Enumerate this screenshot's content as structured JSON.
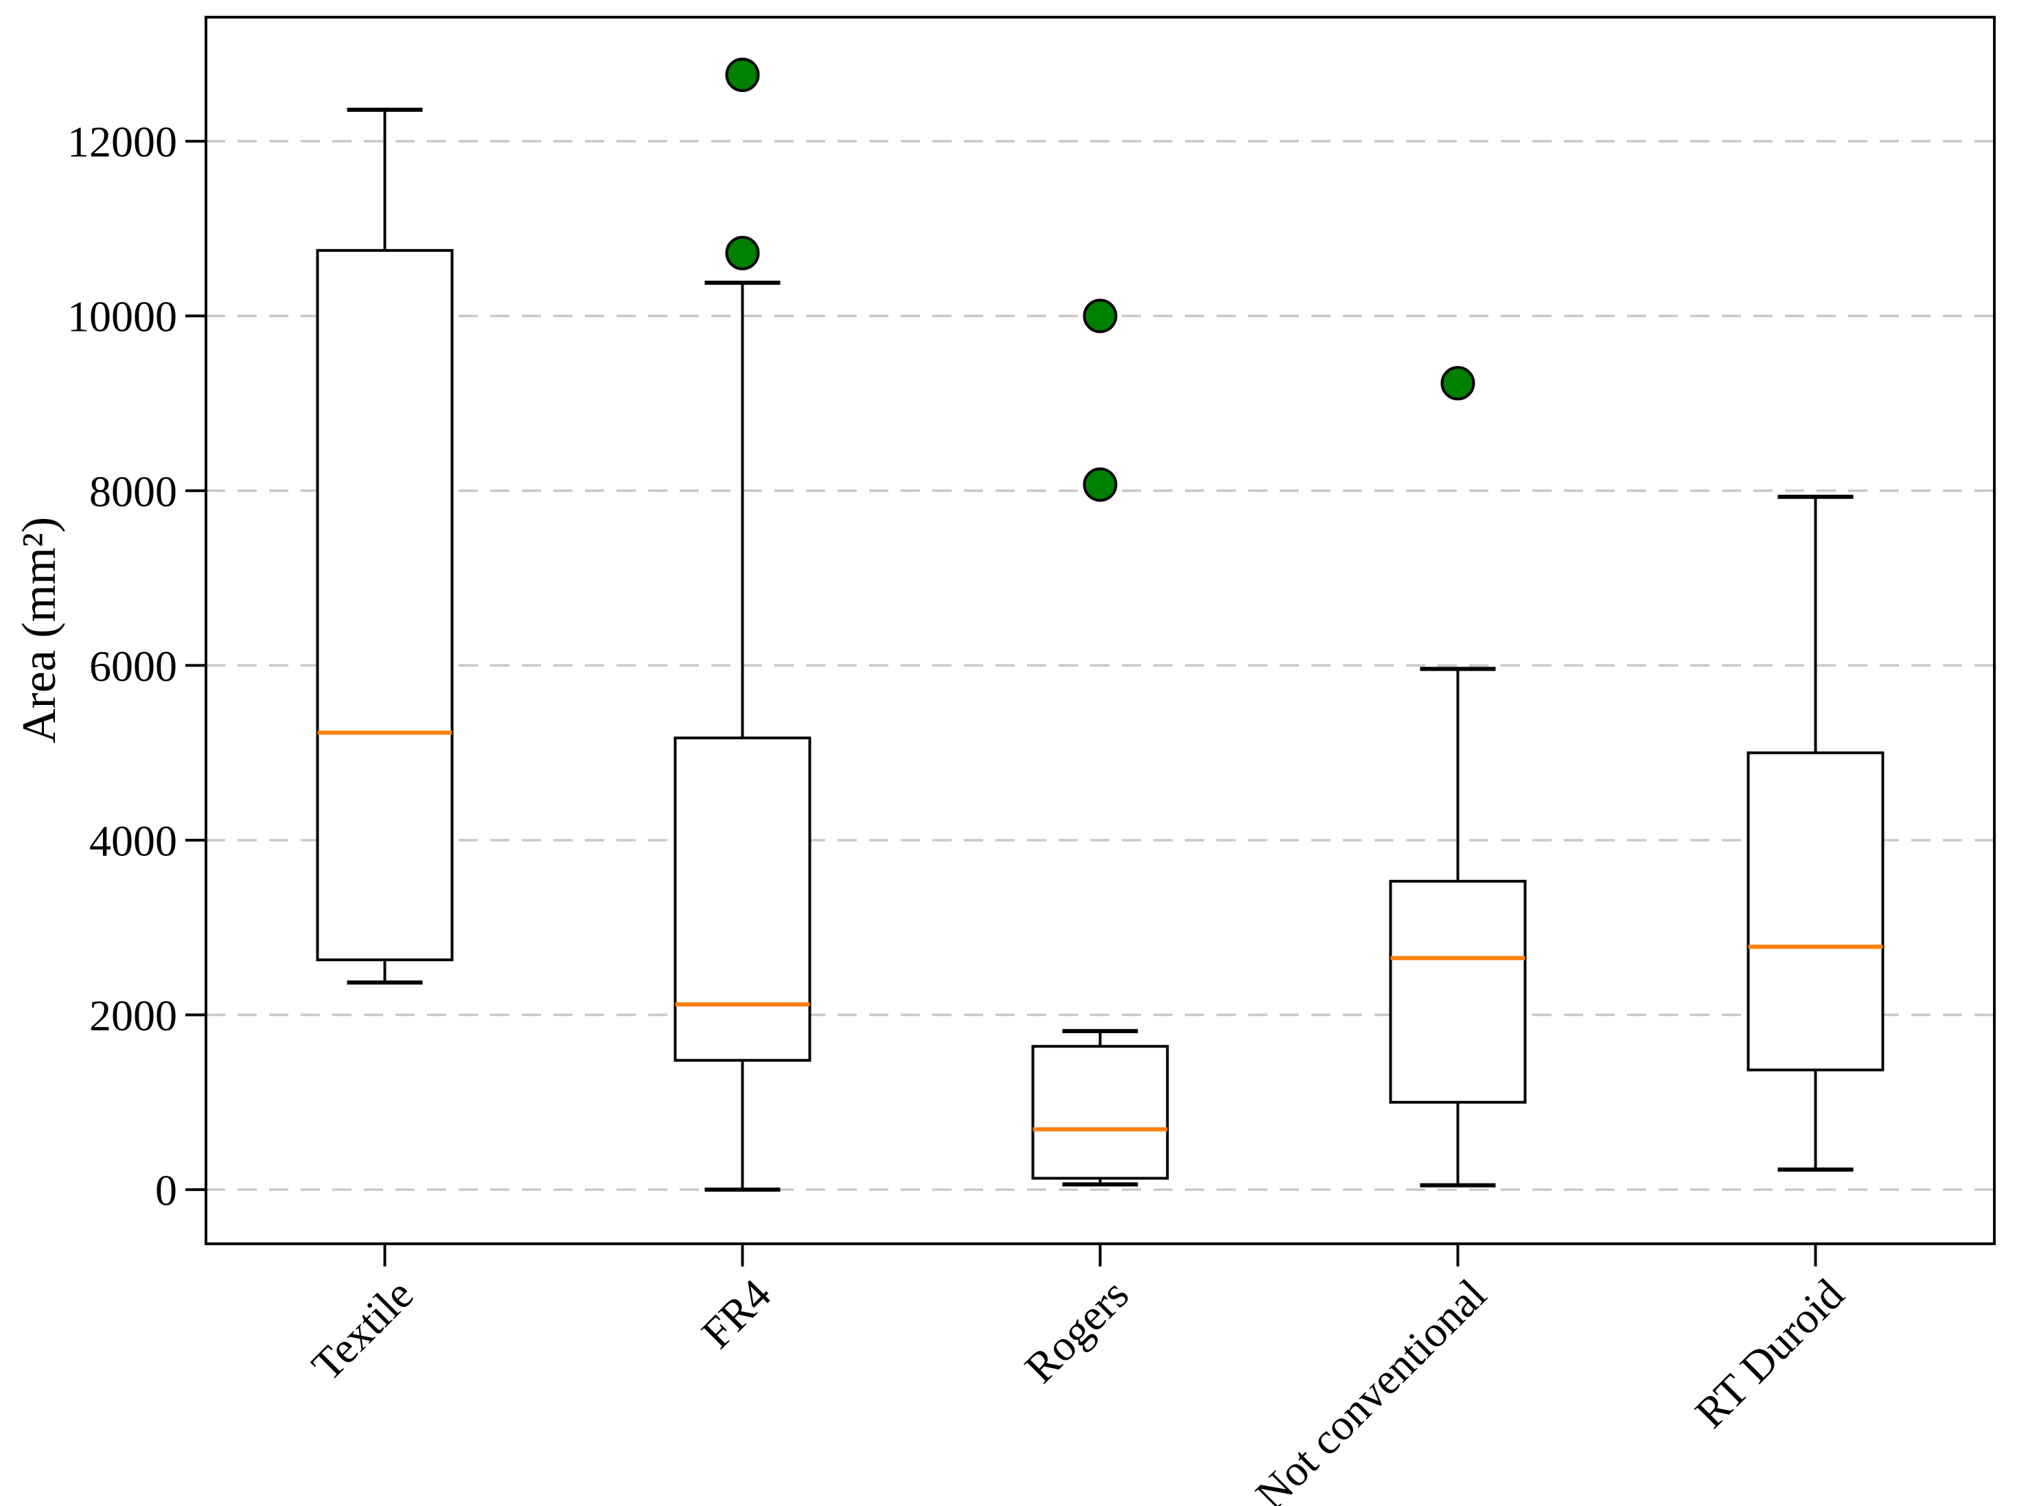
{
  "chart_data": {
    "type": "box",
    "title": "",
    "xlabel": "",
    "ylabel": "Area (mm²)",
    "categories": [
      "Textile",
      "FR4",
      "Rogers",
      "Not conventional",
      "RT Duroid"
    ],
    "y_ticks": [
      0,
      2000,
      4000,
      6000,
      8000,
      10000,
      12000
    ],
    "ylim": [
      -620,
      13420
    ],
    "grid": "horizontal dashed gridlines at each y tick",
    "legend_position": "none",
    "series": [
      {
        "category": "Textile",
        "whisker_low": 2370,
        "q1": 2630,
        "median": 5230,
        "q3": 10750,
        "whisker_high": 12360,
        "outliers": []
      },
      {
        "category": "FR4",
        "whisker_low": 0,
        "q1": 1480,
        "median": 2120,
        "q3": 5170,
        "whisker_high": 10380,
        "outliers": [
          12760,
          10720
        ]
      },
      {
        "category": "Rogers",
        "whisker_low": 60,
        "q1": 130,
        "median": 690,
        "q3": 1640,
        "whisker_high": 1815,
        "outliers": [
          10000,
          8070
        ]
      },
      {
        "category": "Not conventional",
        "whisker_low": 50,
        "q1": 1000,
        "median": 2650,
        "q3": 3530,
        "whisker_high": 5960,
        "outliers": [
          9230
        ]
      },
      {
        "category": "RT Duroid",
        "whisker_low": 230,
        "q1": 1370,
        "median": 2780,
        "q3": 5000,
        "whisker_high": 7930,
        "outliers": []
      }
    ],
    "colors": {
      "median_line": "#ff7f0e",
      "outlier_fill": "#008000",
      "outlier_edge": "#000000",
      "box_edge": "#000000",
      "whisker": "#000000",
      "grid_line": "#c8c8c8",
      "background": "#ffffff"
    }
  }
}
